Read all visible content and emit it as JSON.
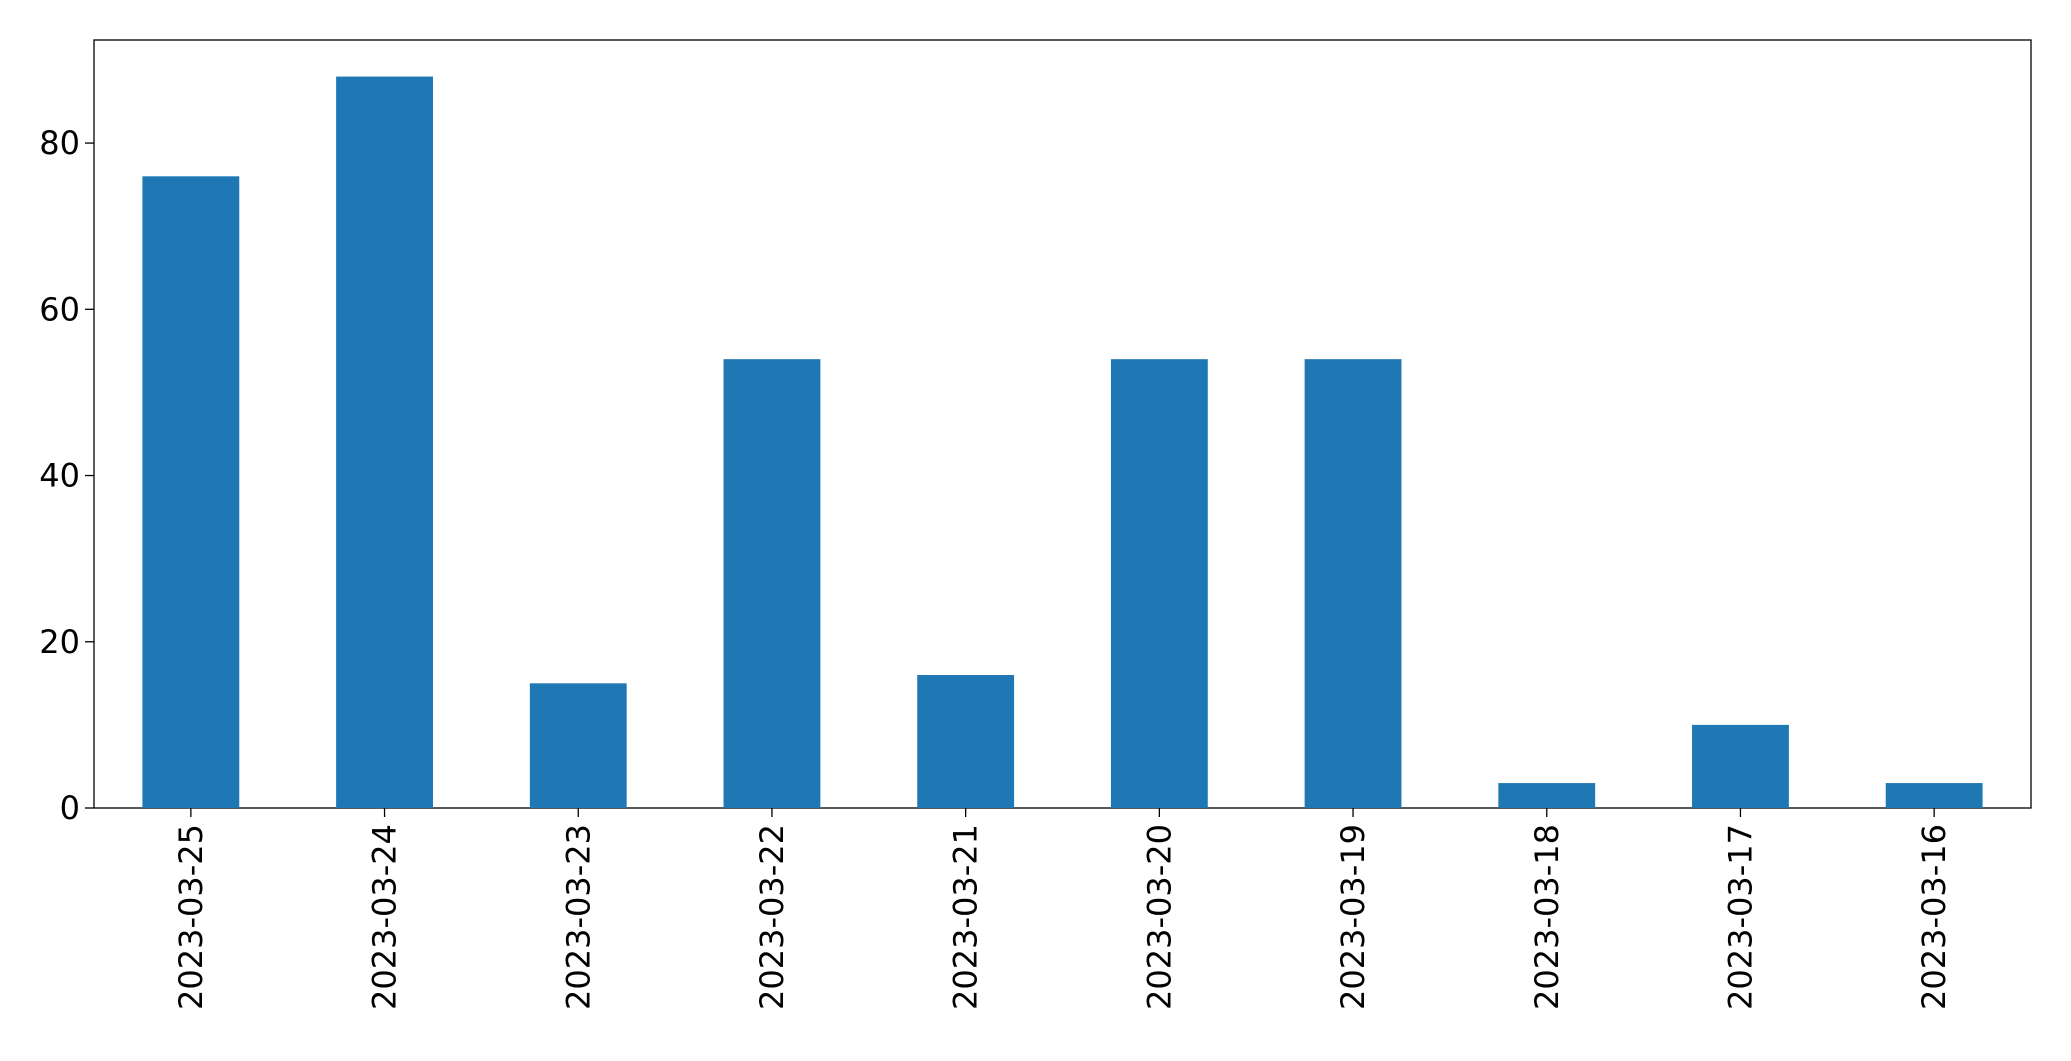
{
  "chart_data": {
    "type": "bar",
    "categories": [
      "2023-03-25",
      "2023-03-24",
      "2023-03-23",
      "2023-03-22",
      "2023-03-21",
      "2023-03-20",
      "2023-03-19",
      "2023-03-18",
      "2023-03-17",
      "2023-03-16"
    ],
    "values": [
      76,
      88,
      15,
      54,
      16,
      54,
      54,
      3,
      10,
      3
    ],
    "color": "#1f77b4",
    "ylim": [
      0,
      92.4
    ],
    "yticks": [
      0,
      20,
      40,
      60,
      80
    ],
    "grid": false
  }
}
